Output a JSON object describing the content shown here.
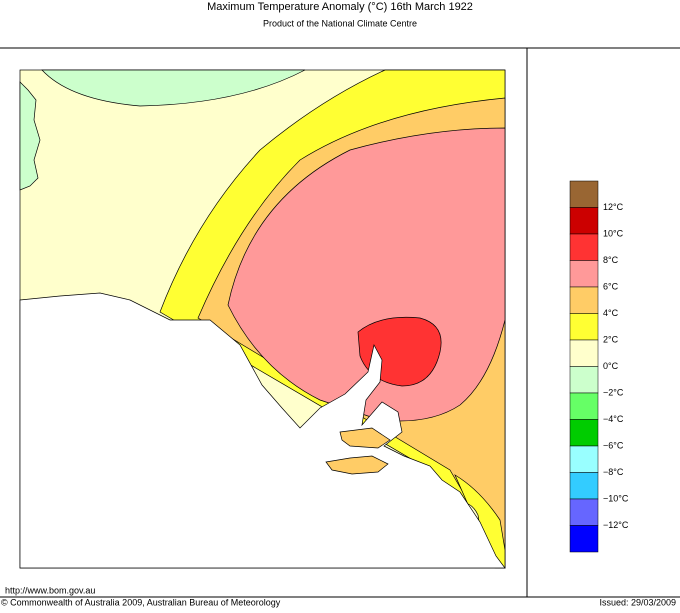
{
  "header": {
    "title": "Maximum Temperature Anomaly (°C)  16th March 1922",
    "subtitle": "Product of the National Climate Centre"
  },
  "legend": {
    "colors": [
      "#996633",
      "#cc0000",
      "#ff3333",
      "#ff9999",
      "#ffcc66",
      "#ffff33",
      "#ffffcc",
      "#ccffcc",
      "#66ff66",
      "#00cc00",
      "#99ffff",
      "#33ccff",
      "#6666ff",
      "#0000ff"
    ],
    "labels": [
      "12°C",
      "10°C",
      "8°C",
      "6°C",
      "4°C",
      "2°C",
      "0°C",
      "−2°C",
      "−4°C",
      "−6°C",
      "−8°C",
      "−10°C",
      "−12°C"
    ]
  },
  "footer": {
    "url": "http://www.bom.gov.au",
    "copyright": "© Commonwealth of Australia 2009, Australian Bureau of Meteorology",
    "issued": "Issued: 29/03/2009"
  }
}
